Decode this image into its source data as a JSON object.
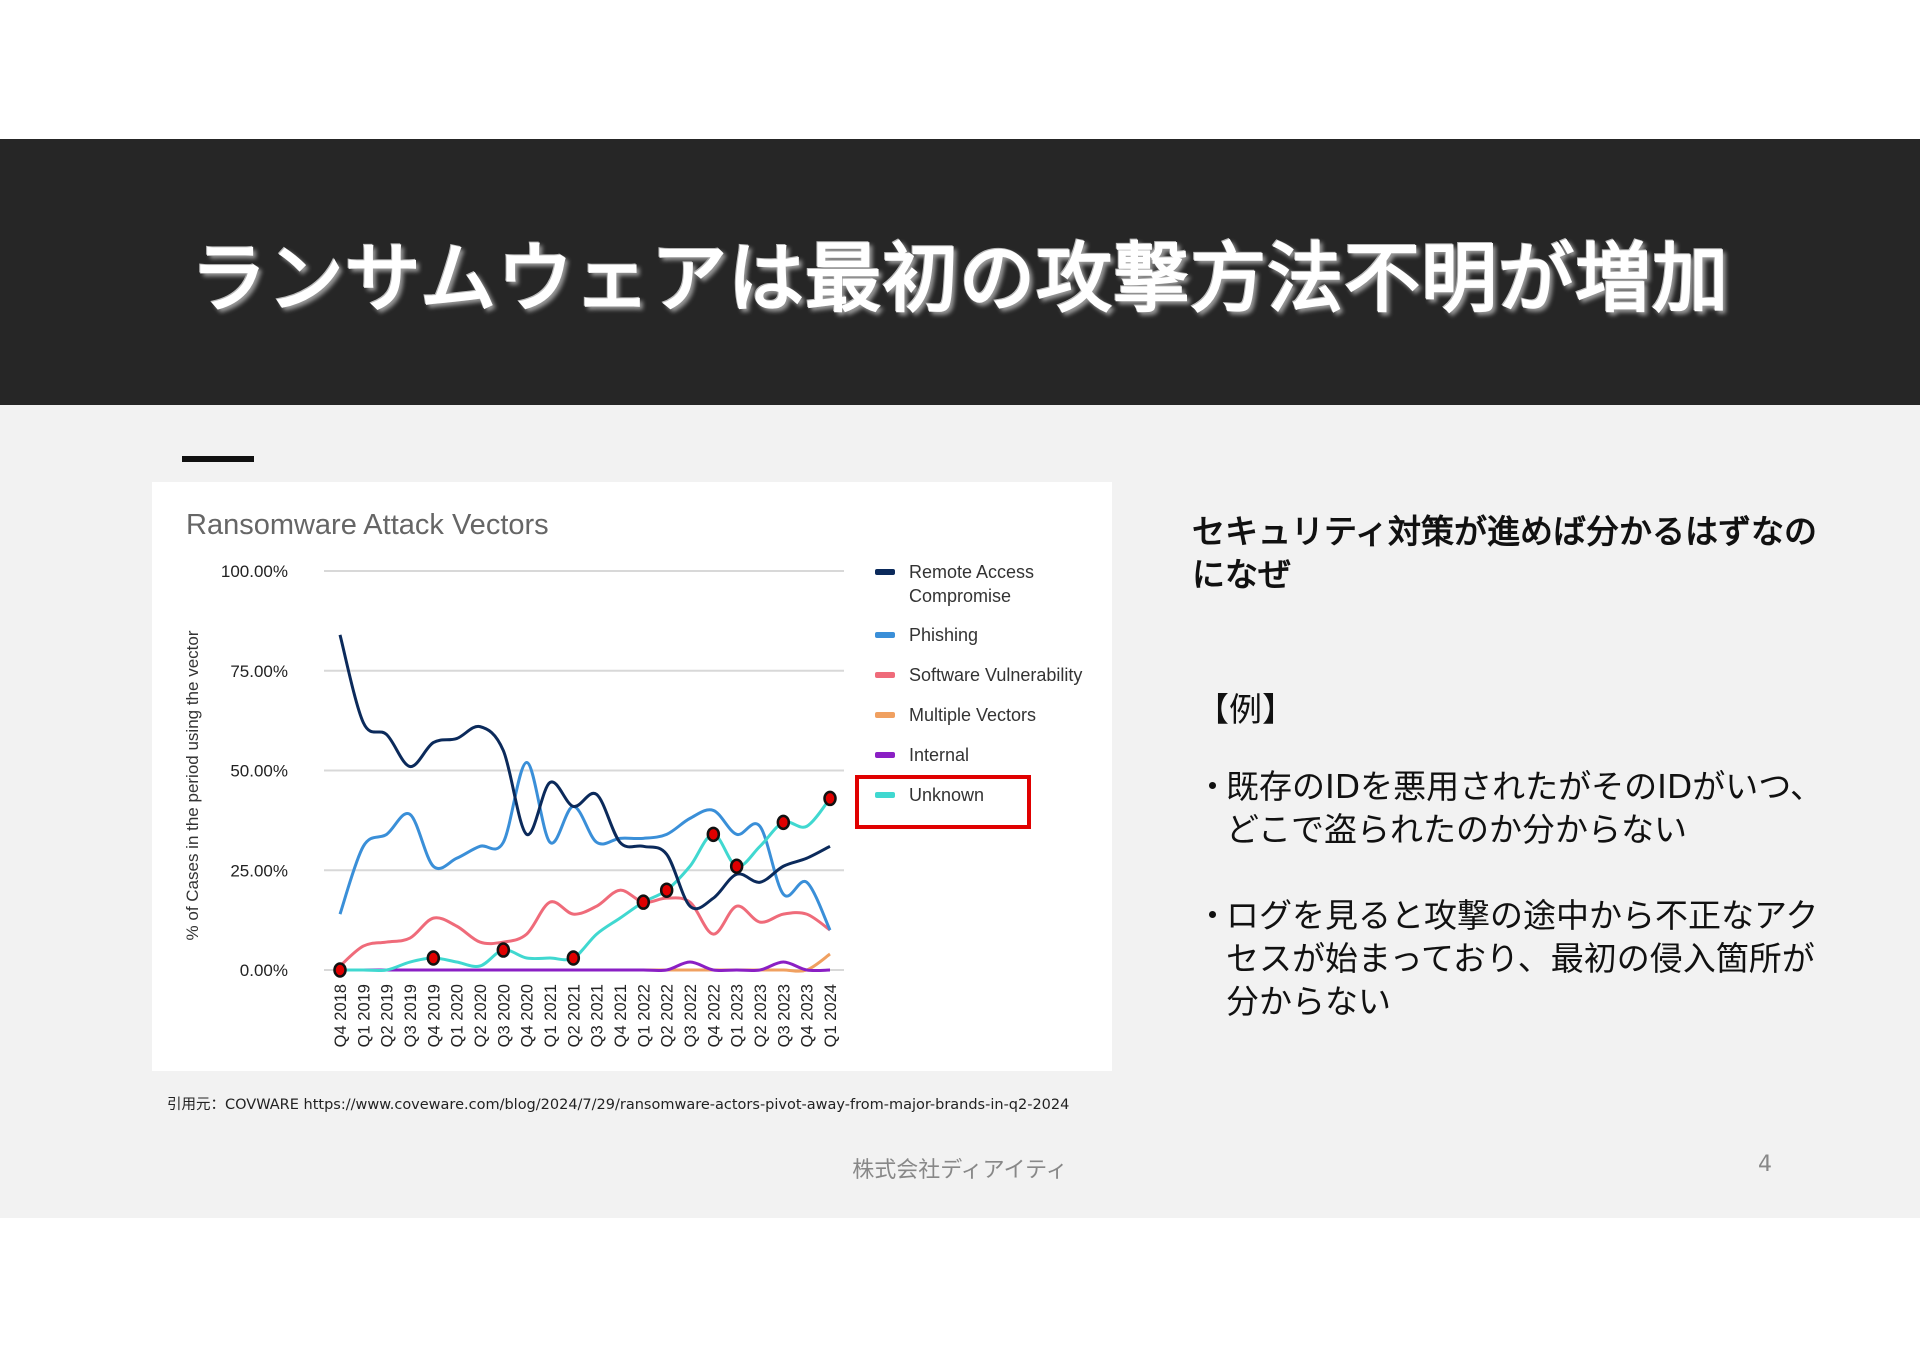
{
  "slide": {
    "title": "ランサムウェアは最初の攻撃方法不明が増加",
    "heading": "セキュリティ対策が進めば分かるはずなのになぜ",
    "example_label": "【例】",
    "bullets": [
      {
        "marker": "・",
        "text": "既存のIDを悪用されたがそのIDがいつ、どこで盗られたのか分からない"
      },
      {
        "marker": "・",
        "text": "ログを見ると攻撃の途中から不正なアクセスが始まっており、最初の侵入箇所が分からない"
      }
    ],
    "citation": "引用元：COVWARE https://www.coveware.com/blog/2024/7/29/ransomware-actors-pivot-away-from-major-brands-in-q2-2024",
    "company": "株式会社ディアイティ",
    "page_number": "4"
  },
  "colors": {
    "band": "#262626",
    "highlight_box": "#e00000",
    "marker": "#e00000"
  },
  "chart_data": {
    "type": "line",
    "title": "Ransomware Attack Vectors",
    "ylabel": "% of Cases in the period using the vector",
    "ylim": [
      0,
      100
    ],
    "yticks": [
      "0.00%",
      "25.00%",
      "50.00%",
      "75.00%",
      "100.00%"
    ],
    "grid": true,
    "legend_position": "right",
    "categories": [
      "Q4 2018",
      "Q1 2019",
      "Q2 2019",
      "Q3 2019",
      "Q4 2019",
      "Q1 2020",
      "Q2 2020",
      "Q3 2020",
      "Q4 2020",
      "Q1 2021",
      "Q2 2021",
      "Q3 2021",
      "Q4 2021",
      "Q1 2022",
      "Q2 2022",
      "Q3 2022",
      "Q4 2022",
      "Q1 2023",
      "Q2 2023",
      "Q3 2023",
      "Q4 2023",
      "Q1 2024"
    ],
    "series": [
      {
        "name": "Remote Access Compromise",
        "color": "#0b2a5b",
        "values": [
          84,
          62,
          59,
          51,
          57,
          58,
          61,
          55,
          34,
          47,
          41,
          44,
          32,
          31,
          29,
          16,
          18,
          24,
          22,
          26,
          28,
          31
        ]
      },
      {
        "name": "Phishing",
        "color": "#3a8fd8",
        "values": [
          14,
          31,
          34,
          39,
          26,
          28,
          31,
          32,
          52,
          32,
          41,
          32,
          33,
          33,
          34,
          38,
          40,
          34,
          36,
          19,
          22,
          10
        ]
      },
      {
        "name": "Software Vulnerability",
        "color": "#ef6b7a",
        "values": [
          1,
          6,
          7,
          8,
          13,
          11,
          7,
          7,
          9,
          17,
          14,
          16,
          20,
          17,
          18,
          17,
          9,
          16,
          12,
          14,
          14,
          10
        ]
      },
      {
        "name": "Multiple Vectors",
        "color": "#f0a060",
        "values": [
          0,
          0,
          0,
          0,
          0,
          0,
          0,
          0,
          0,
          0,
          0,
          0,
          0,
          0,
          0,
          0,
          0,
          0,
          0,
          0,
          0,
          4
        ]
      },
      {
        "name": "Internal",
        "color": "#8a1fc4",
        "values": [
          0,
          0,
          0,
          0,
          0,
          0,
          0,
          0,
          0,
          0,
          0,
          0,
          0,
          0,
          0,
          2,
          0,
          0,
          0,
          2,
          0,
          0
        ]
      },
      {
        "name": "Unknown",
        "color": "#40d8d0",
        "values": [
          0,
          0,
          0,
          2,
          3,
          2,
          1,
          5,
          3,
          3,
          3,
          9,
          13,
          17,
          20,
          26,
          34,
          26,
          31,
          37,
          36,
          43
        ],
        "highlighted": true,
        "marked_points": [
          "Q4 2018",
          "Q4 2019",
          "Q3 2020",
          "Q2 2021",
          "Q1 2022",
          "Q2 2022",
          "Q4 2022",
          "Q1 2023",
          "Q3 2023",
          "Q1 2024"
        ]
      }
    ]
  }
}
